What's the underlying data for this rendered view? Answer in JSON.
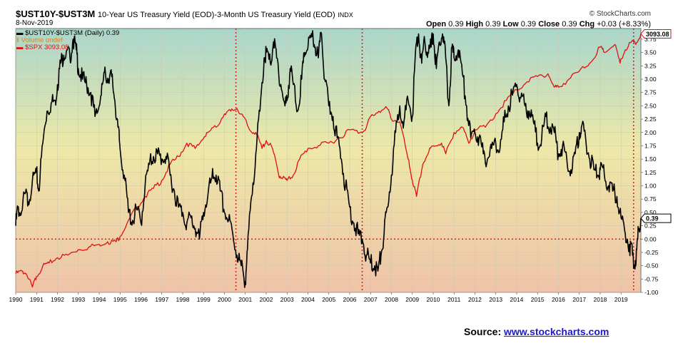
{
  "header": {
    "symbol": "$UST10Y-$UST3M",
    "description": "10-Year US Treasury Yield (EOD)-3-Month US Treasury Yield (EOD)",
    "index_tag": "INDX",
    "date": "8-Nov-2019",
    "brand": "© StockCharts.com",
    "ohlc": {
      "open_label": "Open",
      "open": "0.39",
      "high_label": "High",
      "high": "0.39",
      "low_label": "Low",
      "low": "0.39",
      "close_label": "Close",
      "close": "0.39",
      "chg_label": "Chg",
      "chg": "+0.03 (+8.33%)"
    }
  },
  "legend": {
    "spread": "$UST10Y-$UST3M (Daily) 0.39",
    "volume": "Volume undef",
    "spx": "$SPX 3093.08"
  },
  "source": {
    "label": "Source:",
    "link": "www.stockcharts.com"
  },
  "colors": {
    "spread_line": "#000000",
    "spx_line": "#e01010",
    "marker_line": "#dd2222",
    "bg_top": "#a9d6cc",
    "bg_mid": "#ede8a8",
    "bg_bottom": "#efc3a8"
  },
  "chart_data": {
    "type": "line",
    "x_ticks": [
      "1990",
      "1991",
      "1992",
      "1993",
      "1994",
      "1995",
      "1996",
      "1997",
      "1998",
      "1999",
      "2000",
      "2001",
      "2002",
      "2003",
      "2004",
      "2005",
      "2006",
      "2007",
      "2008",
      "2009",
      "2010",
      "2011",
      "2012",
      "2013",
      "2014",
      "2015",
      "2016",
      "2017",
      "2018",
      "2019"
    ],
    "y_ticks": [
      "3.75",
      "3.50",
      "3.25",
      "3.00",
      "2.75",
      "2.50",
      "2.25",
      "2.00",
      "1.75",
      "1.50",
      "1.25",
      "1.00",
      "0.75",
      "0.50",
      "0.25",
      "0.00",
      "-0.25",
      "-0.50",
      "-0.75",
      "-1.00"
    ],
    "ylim": [
      -1.0,
      3.95
    ],
    "xlim": [
      1990.0,
      2019.95
    ],
    "zero_reference_line": 0.0,
    "last_value_labels": {
      "spx": "3093.08",
      "spread": "0.39"
    },
    "vertical_markers": [
      2000.55,
      2006.6,
      2019.6
    ],
    "series": [
      {
        "name": "$UST10Y-$UST3M",
        "axis": "right",
        "points": [
          [
            1990.0,
            0.25
          ],
          [
            1990.1,
            0.6
          ],
          [
            1990.25,
            0.45
          ],
          [
            1990.45,
            0.85
          ],
          [
            1990.6,
            0.7
          ],
          [
            1990.8,
            1.1
          ],
          [
            1991.0,
            1.25
          ],
          [
            1991.1,
            0.9
          ],
          [
            1991.3,
            1.8
          ],
          [
            1991.5,
            2.4
          ],
          [
            1991.7,
            2.55
          ],
          [
            1991.9,
            2.6
          ],
          [
            1992.0,
            2.9
          ],
          [
            1992.15,
            3.3
          ],
          [
            1992.3,
            3.45
          ],
          [
            1992.45,
            3.55
          ],
          [
            1992.6,
            3.4
          ],
          [
            1992.75,
            3.75
          ],
          [
            1992.9,
            3.55
          ],
          [
            1993.0,
            3.2
          ],
          [
            1993.2,
            3.0
          ],
          [
            1993.4,
            2.9
          ],
          [
            1993.6,
            2.75
          ],
          [
            1993.8,
            2.3
          ],
          [
            1994.0,
            2.5
          ],
          [
            1994.15,
            2.9
          ],
          [
            1994.3,
            3.1
          ],
          [
            1994.45,
            3.0
          ],
          [
            1994.6,
            3.05
          ],
          [
            1994.75,
            2.6
          ],
          [
            1994.9,
            2.1
          ],
          [
            1995.0,
            1.7
          ],
          [
            1995.2,
            1.2
          ],
          [
            1995.4,
            0.5
          ],
          [
            1995.6,
            0.35
          ],
          [
            1995.8,
            0.55
          ],
          [
            1996.0,
            0.3
          ],
          [
            1996.2,
            1.0
          ],
          [
            1996.4,
            1.4
          ],
          [
            1996.6,
            1.55
          ],
          [
            1996.8,
            1.6
          ],
          [
            1997.0,
            1.5
          ],
          [
            1997.2,
            1.55
          ],
          [
            1997.4,
            1.2
          ],
          [
            1997.6,
            0.9
          ],
          [
            1997.8,
            0.6
          ],
          [
            1998.0,
            0.5
          ],
          [
            1998.2,
            0.3
          ],
          [
            1998.4,
            0.4
          ],
          [
            1998.6,
            0.2
          ],
          [
            1998.8,
            0.0
          ],
          [
            1999.0,
            0.5
          ],
          [
            1999.2,
            0.8
          ],
          [
            1999.4,
            1.15
          ],
          [
            1999.6,
            1.2
          ],
          [
            1999.8,
            0.9
          ],
          [
            2000.0,
            0.5
          ],
          [
            2000.2,
            0.35
          ],
          [
            2000.4,
            0.1
          ],
          [
            2000.6,
            -0.3
          ],
          [
            2000.8,
            -0.5
          ],
          [
            2001.0,
            -0.8
          ],
          [
            2001.1,
            -0.2
          ],
          [
            2001.3,
            0.8
          ],
          [
            2001.5,
            1.6
          ],
          [
            2001.7,
            2.4
          ],
          [
            2001.9,
            3.4
          ],
          [
            2002.0,
            3.5
          ],
          [
            2002.2,
            3.3
          ],
          [
            2002.35,
            3.7
          ],
          [
            2002.5,
            3.4
          ],
          [
            2002.7,
            2.9
          ],
          [
            2002.9,
            2.5
          ],
          [
            2003.0,
            2.6
          ],
          [
            2003.15,
            3.2
          ],
          [
            2003.3,
            2.9
          ],
          [
            2003.5,
            2.4
          ],
          [
            2003.7,
            3.0
          ],
          [
            2003.85,
            3.5
          ],
          [
            2004.0,
            3.6
          ],
          [
            2004.2,
            3.8
          ],
          [
            2004.35,
            3.6
          ],
          [
            2004.5,
            3.4
          ],
          [
            2004.65,
            3.85
          ],
          [
            2004.8,
            3.0
          ],
          [
            2005.0,
            2.5
          ],
          [
            2005.2,
            2.3
          ],
          [
            2005.4,
            1.9
          ],
          [
            2005.6,
            1.5
          ],
          [
            2005.8,
            1.0
          ],
          [
            2006.0,
            0.6
          ],
          [
            2006.2,
            0.3
          ],
          [
            2006.4,
            0.1
          ],
          [
            2006.6,
            0.0
          ],
          [
            2006.8,
            -0.3
          ],
          [
            2007.0,
            -0.45
          ],
          [
            2007.2,
            -0.5
          ],
          [
            2007.35,
            -0.6
          ],
          [
            2007.5,
            -0.3
          ],
          [
            2007.65,
            0.1
          ],
          [
            2007.8,
            0.6
          ],
          [
            2008.0,
            1.2
          ],
          [
            2008.2,
            2.0
          ],
          [
            2008.4,
            2.5
          ],
          [
            2008.6,
            2.2
          ],
          [
            2008.8,
            2.6
          ],
          [
            2009.0,
            2.3
          ],
          [
            2009.15,
            3.5
          ],
          [
            2009.3,
            3.85
          ],
          [
            2009.45,
            3.3
          ],
          [
            2009.6,
            3.7
          ],
          [
            2009.75,
            3.5
          ],
          [
            2009.9,
            3.6
          ],
          [
            2010.0,
            3.85
          ],
          [
            2010.15,
            3.2
          ],
          [
            2010.3,
            3.7
          ],
          [
            2010.45,
            3.85
          ],
          [
            2010.6,
            3.4
          ],
          [
            2010.75,
            2.5
          ],
          [
            2010.9,
            3.6
          ],
          [
            2011.0,
            3.4
          ],
          [
            2011.2,
            3.55
          ],
          [
            2011.4,
            3.1
          ],
          [
            2011.6,
            2.5
          ],
          [
            2011.8,
            1.9
          ],
          [
            2012.0,
            2.0
          ],
          [
            2012.2,
            1.9
          ],
          [
            2012.4,
            1.6
          ],
          [
            2012.6,
            1.5
          ],
          [
            2012.8,
            1.7
          ],
          [
            2013.0,
            1.8
          ],
          [
            2013.2,
            1.7
          ],
          [
            2013.4,
            2.2
          ],
          [
            2013.6,
            2.5
          ],
          [
            2013.8,
            2.7
          ],
          [
            2014.0,
            2.9
          ],
          [
            2014.2,
            2.65
          ],
          [
            2014.4,
            2.5
          ],
          [
            2014.6,
            2.4
          ],
          [
            2014.8,
            2.2
          ],
          [
            2015.0,
            1.8
          ],
          [
            2015.2,
            1.9
          ],
          [
            2015.4,
            2.3
          ],
          [
            2015.6,
            2.1
          ],
          [
            2015.8,
            2.0
          ],
          [
            2016.0,
            1.6
          ],
          [
            2016.2,
            1.75
          ],
          [
            2016.4,
            1.5
          ],
          [
            2016.6,
            1.3
          ],
          [
            2016.8,
            1.6
          ],
          [
            2017.0,
            2.0
          ],
          [
            2017.1,
            2.1
          ],
          [
            2017.3,
            1.9
          ],
          [
            2017.5,
            1.5
          ],
          [
            2017.7,
            1.3
          ],
          [
            2017.9,
            1.2
          ],
          [
            2018.0,
            1.3
          ],
          [
            2018.2,
            1.2
          ],
          [
            2018.4,
            1.0
          ],
          [
            2018.6,
            0.9
          ],
          [
            2018.8,
            0.8
          ],
          [
            2019.0,
            0.4
          ],
          [
            2019.2,
            0.1
          ],
          [
            2019.4,
            -0.1
          ],
          [
            2019.55,
            -0.3
          ],
          [
            2019.65,
            -0.5
          ],
          [
            2019.75,
            -0.2
          ],
          [
            2019.85,
            0.2
          ],
          [
            2019.95,
            0.39
          ]
        ]
      },
      {
        "name": "$SPX",
        "axis": "overlay",
        "points": [
          [
            1990.0,
            -0.65
          ],
          [
            1990.3,
            -0.6
          ],
          [
            1990.5,
            -0.65
          ],
          [
            1990.8,
            -0.9
          ],
          [
            1991.0,
            -0.7
          ],
          [
            1991.3,
            -0.5
          ],
          [
            1991.6,
            -0.45
          ],
          [
            1992.0,
            -0.35
          ],
          [
            1992.5,
            -0.3
          ],
          [
            1993.0,
            -0.2
          ],
          [
            1993.5,
            -0.15
          ],
          [
            1994.0,
            -0.1
          ],
          [
            1994.4,
            -0.05
          ],
          [
            1994.8,
            -0.05
          ],
          [
            1995.0,
            0.05
          ],
          [
            1995.4,
            0.35
          ],
          [
            1995.8,
            0.6
          ],
          [
            1996.2,
            0.8
          ],
          [
            1996.6,
            0.95
          ],
          [
            1997.0,
            1.1
          ],
          [
            1997.4,
            1.4
          ],
          [
            1997.8,
            1.55
          ],
          [
            1998.2,
            1.8
          ],
          [
            1998.6,
            1.7
          ],
          [
            1998.9,
            1.85
          ],
          [
            1999.2,
            2.0
          ],
          [
            1999.6,
            2.1
          ],
          [
            2000.0,
            2.35
          ],
          [
            2000.3,
            2.4
          ],
          [
            2000.6,
            2.45
          ],
          [
            2000.9,
            2.3
          ],
          [
            2001.2,
            2.05
          ],
          [
            2001.5,
            2.0
          ],
          [
            2001.8,
            1.7
          ],
          [
            2002.0,
            1.85
          ],
          [
            2002.3,
            1.7
          ],
          [
            2002.6,
            1.2
          ],
          [
            2002.8,
            1.15
          ],
          [
            2003.0,
            1.1
          ],
          [
            2003.3,
            1.2
          ],
          [
            2003.6,
            1.5
          ],
          [
            2004.0,
            1.7
          ],
          [
            2004.5,
            1.75
          ],
          [
            2005.0,
            1.8
          ],
          [
            2005.5,
            1.9
          ],
          [
            2006.0,
            2.05
          ],
          [
            2006.5,
            2.0
          ],
          [
            2006.8,
            2.1
          ],
          [
            2007.0,
            2.3
          ],
          [
            2007.4,
            2.4
          ],
          [
            2007.8,
            2.45
          ],
          [
            2008.0,
            2.25
          ],
          [
            2008.4,
            2.2
          ],
          [
            2008.8,
            1.5
          ],
          [
            2009.0,
            1.1
          ],
          [
            2009.2,
            0.8
          ],
          [
            2009.5,
            1.4
          ],
          [
            2009.8,
            1.65
          ],
          [
            2010.0,
            1.75
          ],
          [
            2010.4,
            1.8
          ],
          [
            2010.6,
            1.6
          ],
          [
            2011.0,
            2.0
          ],
          [
            2011.4,
            2.1
          ],
          [
            2011.7,
            1.8
          ],
          [
            2012.0,
            2.05
          ],
          [
            2012.5,
            2.1
          ],
          [
            2013.0,
            2.35
          ],
          [
            2013.5,
            2.6
          ],
          [
            2014.0,
            2.8
          ],
          [
            2014.5,
            2.95
          ],
          [
            2015.0,
            3.05
          ],
          [
            2015.5,
            3.1
          ],
          [
            2015.8,
            2.85
          ],
          [
            2016.0,
            2.85
          ],
          [
            2016.5,
            3.0
          ],
          [
            2017.0,
            3.15
          ],
          [
            2017.5,
            3.3
          ],
          [
            2018.0,
            3.6
          ],
          [
            2018.2,
            3.5
          ],
          [
            2018.7,
            3.65
          ],
          [
            2018.95,
            3.3
          ],
          [
            2019.2,
            3.55
          ],
          [
            2019.5,
            3.7
          ],
          [
            2019.7,
            3.65
          ],
          [
            2019.95,
            3.85
          ]
        ]
      }
    ]
  }
}
